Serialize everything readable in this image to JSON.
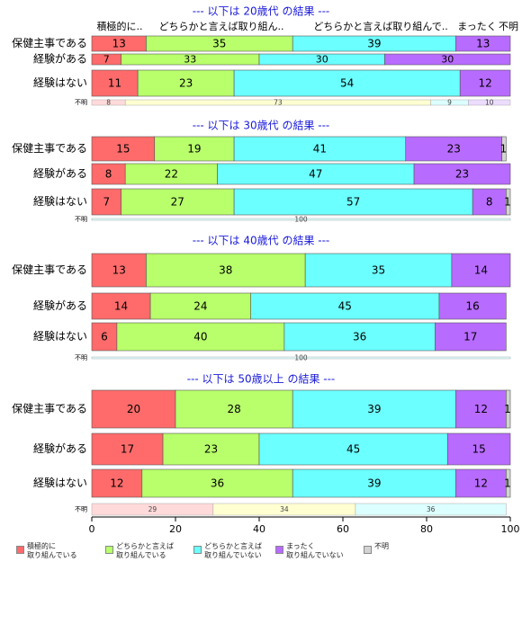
{
  "chart_data": {
    "type": "bar",
    "orientation": "horizontal",
    "stacked": true,
    "xlim": [
      0,
      100
    ],
    "x_ticks": [
      0,
      20,
      40,
      60,
      80,
      100
    ],
    "column_headers": [
      "積極的に..",
      "どちらかと言えば取り組ん..",
      "どちらかと言えば取り組んで..",
      "まったく",
      "不明"
    ],
    "category_names": [
      "積極的に取り組んでいる",
      "どちらかと言えば取り組んでいる",
      "どちらかと言えば取り組んでいない",
      "まったく取り組んでいない",
      "不明"
    ],
    "legend_labels": [
      [
        "積極的に",
        "取り組んでいる"
      ],
      [
        "どちらかと言えば",
        "取り組んでいる"
      ],
      [
        "どちらかと言えば",
        "取り組んでいない"
      ],
      [
        "まったく",
        "取り組んでいない"
      ],
      [
        "不明"
      ]
    ],
    "colors": [
      "#ff6b6b",
      "#b8ff6b",
      "#6bffff",
      "#b86bff",
      "#d3d3d3"
    ],
    "light_colors": [
      "#ffdada",
      "#ffffd2",
      "#dcffff",
      "#ecdcff",
      "#efefef"
    ],
    "legend_position": "bottom",
    "panels": [
      {
        "title": "--- 以下は 20歳代 の結果 ---",
        "rows": [
          {
            "label": "保健主事である",
            "values": [
              13,
              35,
              39,
              13,
              0
            ]
          },
          {
            "label": "経験がある",
            "values": [
              7,
              33,
              30,
              30,
              0
            ]
          },
          {
            "label": "経験はない",
            "values": [
              11,
              23,
              54,
              12,
              0
            ]
          }
        ],
        "unknown": {
          "label": "不明",
          "values": [
            8,
            73,
            9,
            10
          ]
        }
      },
      {
        "title": "--- 以下は 30歳代 の結果 ---",
        "rows": [
          {
            "label": "保健主事である",
            "values": [
              15,
              19,
              41,
              23,
              1
            ]
          },
          {
            "label": "経験がある",
            "values": [
              8,
              22,
              47,
              23,
              0
            ]
          },
          {
            "label": "経験はない",
            "values": [
              7,
              27,
              57,
              8,
              1
            ]
          }
        ],
        "unknown": {
          "label": "不明",
          "values": [
            0,
            0,
            100,
            0
          ]
        }
      },
      {
        "title": "--- 以下は 40歳代 の結果 ---",
        "rows": [
          {
            "label": "保健主事である",
            "values": [
              13,
              38,
              35,
              14,
              0
            ]
          },
          {
            "label": "経験がある",
            "values": [
              14,
              24,
              45,
              16,
              0
            ]
          },
          {
            "label": "経験はない",
            "values": [
              6,
              40,
              36,
              17,
              0
            ]
          }
        ],
        "unknown": {
          "label": "不明",
          "values": [
            0,
            0,
            100,
            0
          ]
        }
      },
      {
        "title": "--- 以下は 50歳以上 の結果 ---",
        "rows": [
          {
            "label": "保健主事である",
            "values": [
              20,
              28,
              39,
              12,
              1
            ]
          },
          {
            "label": "経験がある",
            "values": [
              17,
              23,
              45,
              15,
              0
            ]
          },
          {
            "label": "経験はない",
            "values": [
              12,
              36,
              39,
              12,
              1
            ]
          }
        ],
        "unknown": {
          "label": "不明",
          "values": [
            29,
            34,
            36,
            0
          ]
        }
      }
    ]
  }
}
